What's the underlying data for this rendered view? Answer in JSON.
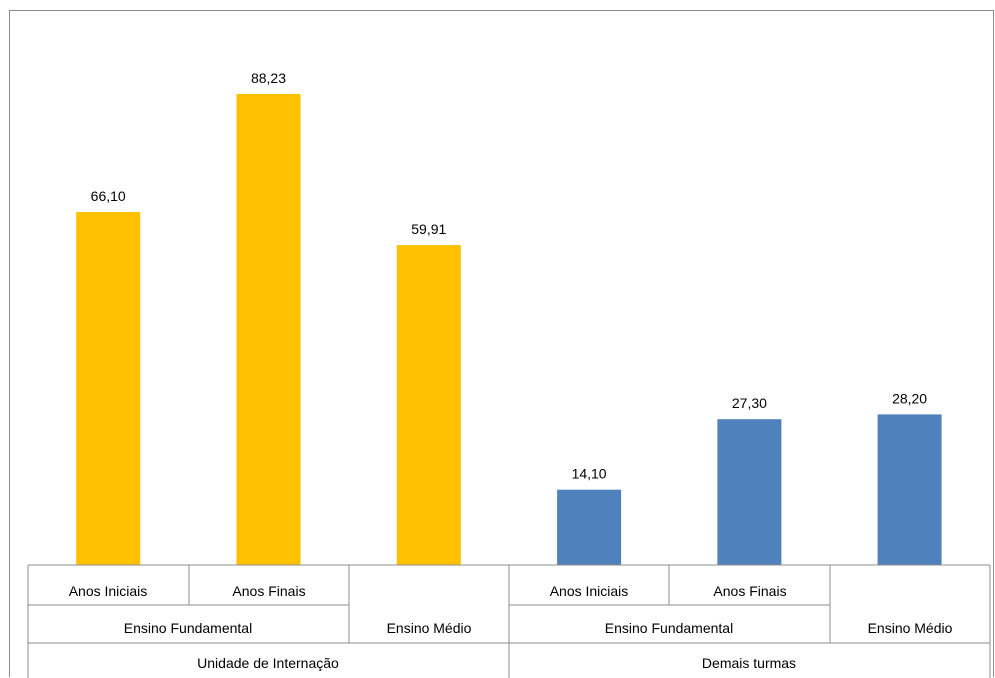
{
  "chart_data": {
    "type": "bar",
    "title": "",
    "xlabel": "",
    "ylabel": "",
    "ylim": [
      0,
      100
    ],
    "bars": [
      {
        "label": "Anos Iniciais",
        "level": "Ensino Fundamental",
        "group": "Unidade de Internação",
        "value": 66.1,
        "value_label": "66,10",
        "color": "#FFC000"
      },
      {
        "label": "Anos Finais",
        "level": "Ensino Fundamental",
        "group": "Unidade de Internação",
        "value": 88.23,
        "value_label": "88,23",
        "color": "#FFC000"
      },
      {
        "label": "",
        "level": "Ensino Médio",
        "group": "Unidade de Internação",
        "value": 59.91,
        "value_label": "59,91",
        "color": "#FFC000"
      },
      {
        "label": "Anos Iniciais",
        "level": "Ensino Fundamental",
        "group": "Demais turmas",
        "value": 14.1,
        "value_label": "14,10",
        "color": "#4F81BD"
      },
      {
        "label": "Anos Finais",
        "level": "Ensino Fundamental",
        "group": "Demais turmas",
        "value": 27.3,
        "value_label": "27,30",
        "color": "#4F81BD"
      },
      {
        "label": "",
        "level": "Ensino Médio",
        "group": "Demais turmas",
        "value": 28.2,
        "value_label": "28,20",
        "color": "#4F81BD"
      }
    ],
    "axis_labels": {
      "tier1": [
        "Anos Iniciais",
        "Anos Finais",
        "Anos Iniciais",
        "Anos Finais"
      ],
      "tier2": [
        "Ensino Fundamental",
        "Ensino Médio",
        "Ensino Fundamental",
        "Ensino Médio"
      ],
      "tier3": [
        "Unidade de Internação",
        "Demais turmas"
      ]
    }
  }
}
